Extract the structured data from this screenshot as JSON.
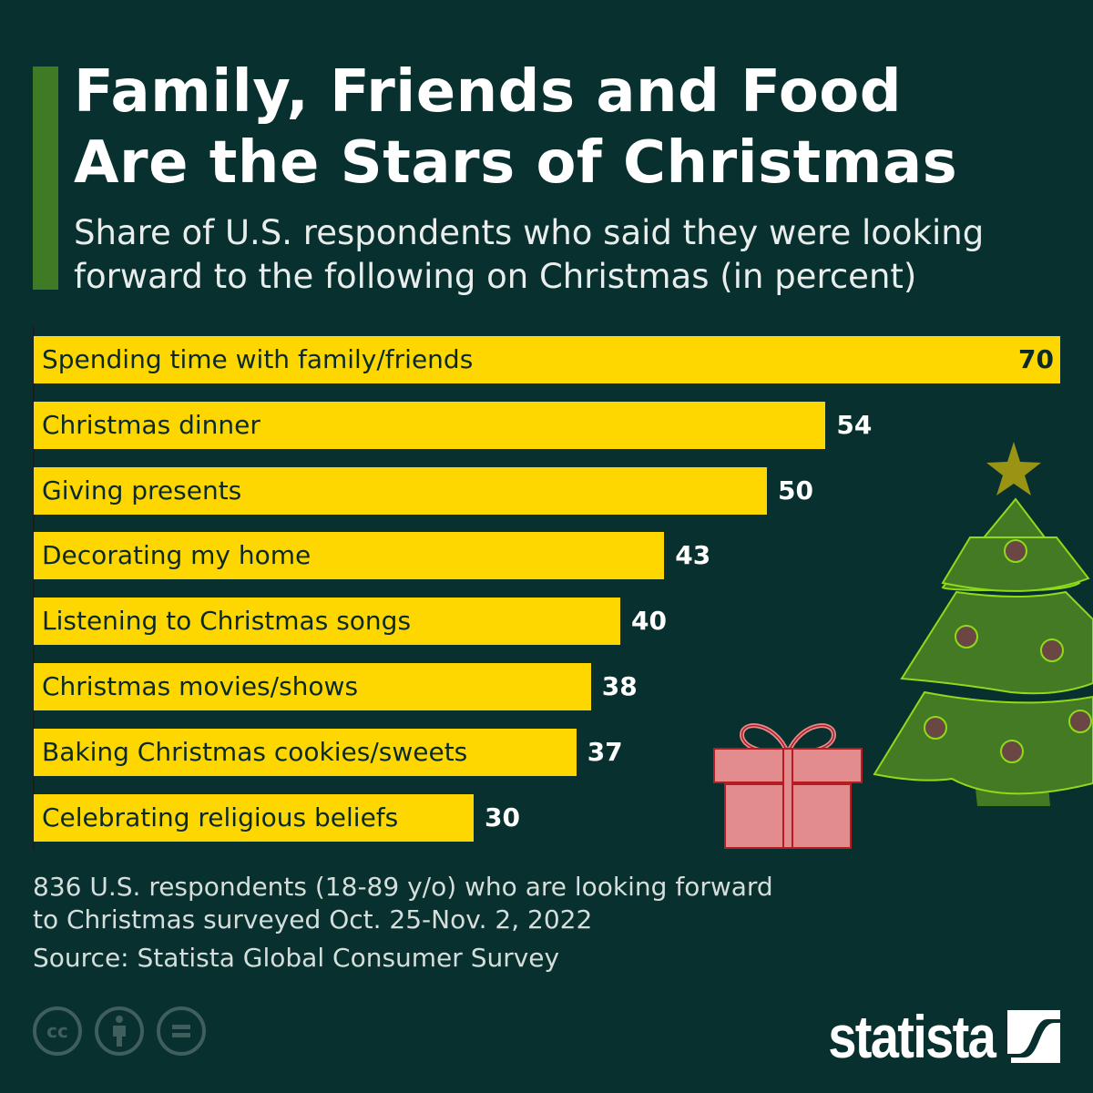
{
  "header": {
    "title_line1": "Family, Friends and Food",
    "title_line2": "Are the Stars of Christmas",
    "subtitle_line1": "Share of U.S. respondents who said they were looking",
    "subtitle_line2": "forward to the following on Christmas (in percent)"
  },
  "chart_data": {
    "type": "bar",
    "orientation": "horizontal",
    "categories": [
      "Spending time with family/friends",
      "Christmas dinner",
      "Giving presents",
      "Decorating my home",
      "Listening to Christmas songs",
      "Christmas movies/shows",
      "Baking Christmas cookies/sweets",
      "Celebrating religious beliefs"
    ],
    "values": [
      70,
      54,
      50,
      43,
      40,
      38,
      37,
      30
    ],
    "xlim": [
      0,
      70
    ],
    "grid": false,
    "bar_color": "#ffd700",
    "title": "Family, Friends and Food Are the Stars of Christmas"
  },
  "footer": {
    "note_line1": "836 U.S. respondents (18-89 y/o) who are looking forward",
    "note_line2": "to Christmas surveyed Oct. 25-Nov. 2, 2022",
    "source": "Source: Statista Global Consumer Survey",
    "logo": "statista",
    "license_icons": [
      "cc-icon",
      "attribution-icon",
      "no-derivatives-icon"
    ]
  },
  "colors": {
    "background": "#08302e",
    "accent": "#3f7a25",
    "bar": "#ffd700"
  }
}
